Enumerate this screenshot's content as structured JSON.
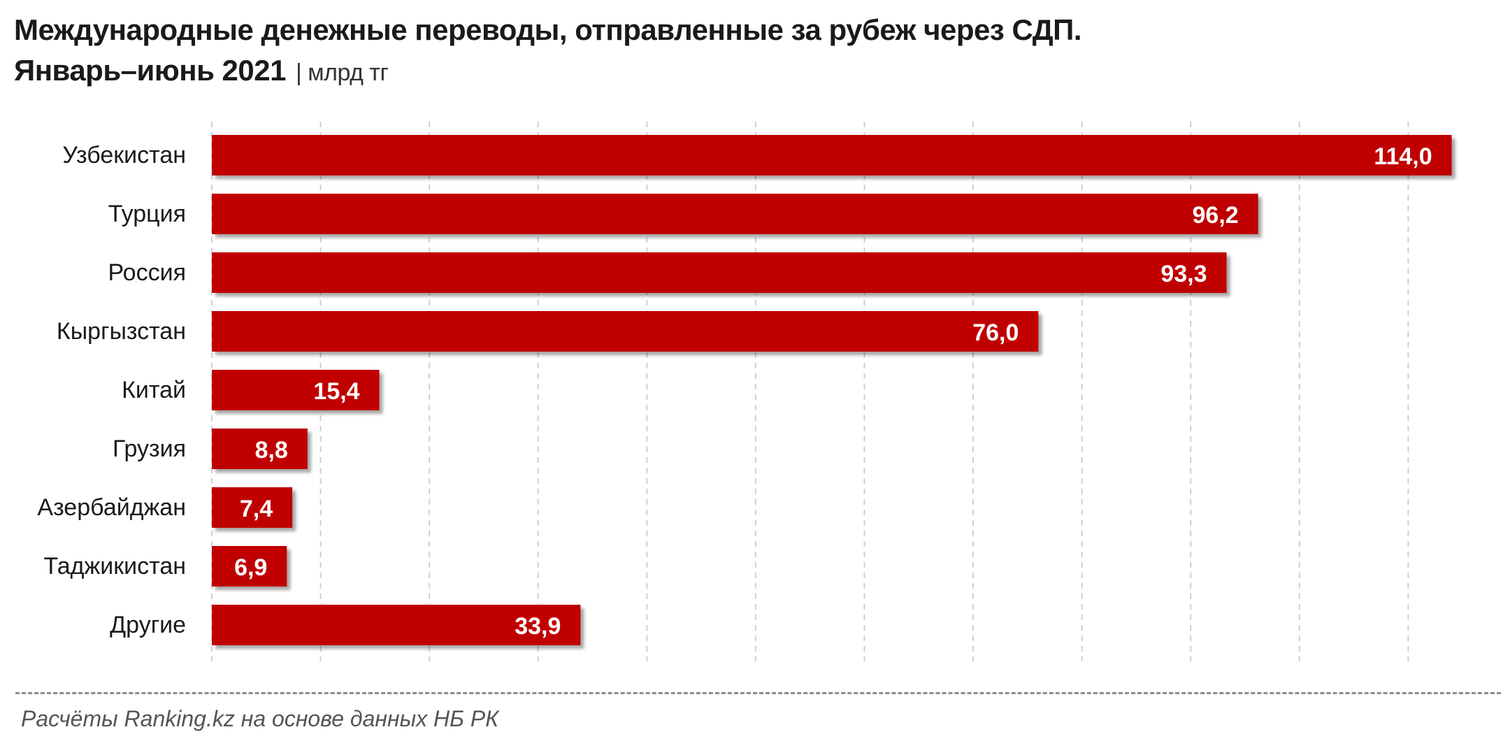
{
  "title": {
    "line1": "Международные денежные переводы, отправленные за рубеж через СДП.",
    "line2": "Январь–июнь 2021",
    "unit": "| млрд тг"
  },
  "source": "Расчёты Ranking.kz на основе данных НБ РК",
  "chart_data": {
    "type": "bar",
    "orientation": "horizontal",
    "categories": [
      "Узбекистан",
      "Турция",
      "Россия",
      "Кыргызстан",
      "Китай",
      "Грузия",
      "Азербайджан",
      "Таджикистан",
      "Другие"
    ],
    "values": [
      114.0,
      96.2,
      93.3,
      76.0,
      15.4,
      8.8,
      7.4,
      6.9,
      33.9
    ],
    "value_labels": [
      "114,0",
      "96,2",
      "93,3",
      "76,0",
      "15,4",
      "8,8",
      "7,4",
      "6,9",
      "33,9"
    ],
    "xlim": [
      0,
      120
    ],
    "grid": true,
    "bar_color": "#c00000",
    "label_color": "#ffffff"
  }
}
